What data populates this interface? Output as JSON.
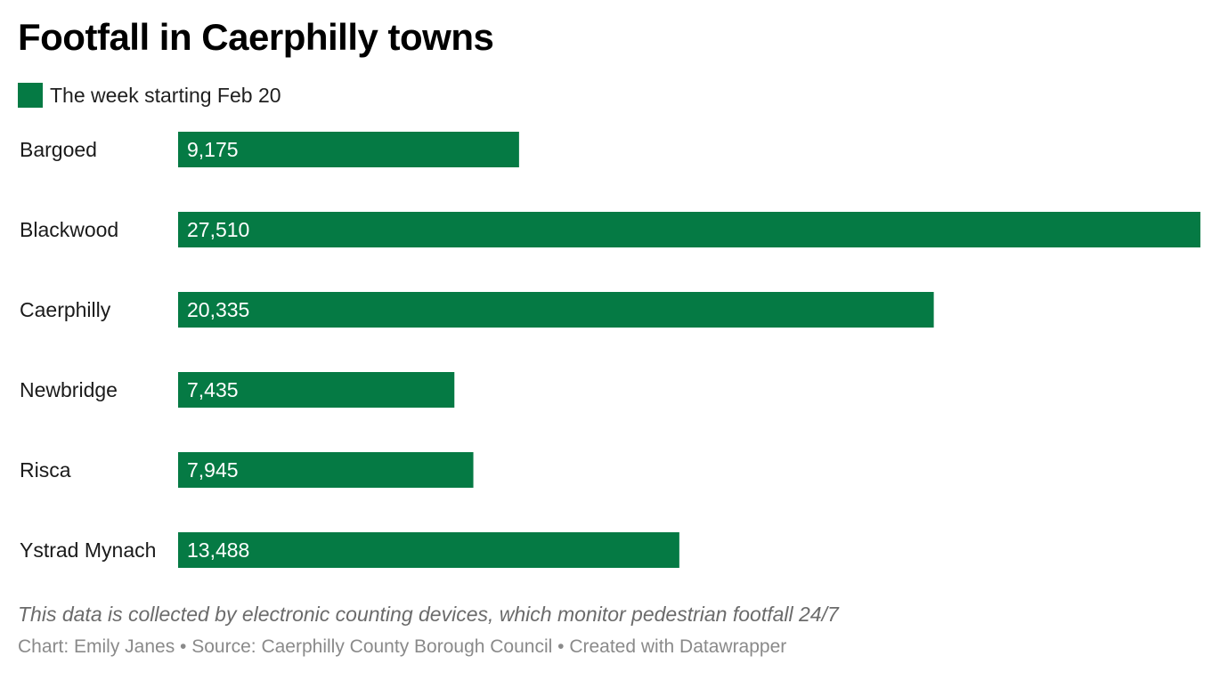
{
  "chart_data": {
    "type": "bar",
    "orientation": "horizontal",
    "title": "Footfall in Caerphilly towns",
    "categories": [
      "Bargoed",
      "Blackwood",
      "Caerphilly",
      "Newbridge",
      "Risca",
      "Ystrad Mynach"
    ],
    "series": [
      {
        "name": "The week starting Feb 20",
        "color": "#057a44",
        "values": [
          9175,
          27510,
          20335,
          7435,
          7945,
          13488
        ],
        "labels": [
          "9,175",
          "27,510",
          "20,335",
          "7,435",
          "7,945",
          "13,488"
        ]
      }
    ],
    "xlim": [
      0,
      27510
    ],
    "grid": false,
    "legend_position": "top-left",
    "notes": "This data is collected by electronic counting devices, which monitor pedestrian footfall 24/7",
    "footer": "Chart: Emily Janes • Source: Caerphilly County Borough Council • Created with Datawrapper"
  }
}
